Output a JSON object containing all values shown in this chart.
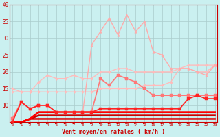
{
  "background_color": "#caf0f0",
  "grid_color": "#aacccc",
  "xlabel": "Vent moyen/en rafales ( km/h )",
  "xlim": [
    -0.3,
    23.3
  ],
  "ylim": [
    5,
    40
  ],
  "ytick_vals": [
    10,
    15,
    20,
    25,
    30,
    35,
    40
  ],
  "xtick_vals": [
    0,
    1,
    2,
    3,
    4,
    5,
    6,
    7,
    8,
    9,
    10,
    11,
    12,
    13,
    14,
    15,
    16,
    17,
    18,
    19,
    20,
    21,
    22,
    23
  ],
  "series": [
    {
      "y": [
        14,
        14,
        14,
        14,
        14,
        14,
        14,
        14,
        14,
        14,
        15,
        15,
        15,
        15,
        15,
        16,
        16,
        16,
        17,
        21,
        22,
        22,
        22,
        22
      ],
      "color": "#ffbbbb",
      "lw": 1.0,
      "marker": "D",
      "ms": 2.0
    },
    {
      "y": [
        15,
        14,
        14,
        17,
        19,
        18,
        18,
        19,
        18,
        18,
        20,
        20,
        21,
        21,
        20,
        20,
        20,
        20,
        20,
        21,
        21,
        20,
        20,
        22
      ],
      "color": "#ffbbbb",
      "lw": 1.0,
      "marker": "D",
      "ms": 2.0
    },
    {
      "y": [
        6,
        11,
        9,
        10,
        10,
        8,
        8,
        8,
        8,
        28,
        32,
        36,
        31,
        37,
        32,
        35,
        26,
        25,
        21,
        21,
        21,
        20,
        19,
        22
      ],
      "color": "#ffaaaa",
      "lw": 1.0,
      "marker": "^",
      "ms": 2.5
    },
    {
      "y": [
        6,
        11,
        9,
        10,
        10,
        8,
        8,
        8,
        8,
        8,
        18,
        16,
        19,
        18,
        17,
        15,
        13,
        13,
        13,
        13,
        13,
        13,
        13,
        13
      ],
      "color": "#ff7777",
      "lw": 1.2,
      "marker": "s",
      "ms": 2.5
    },
    {
      "y": [
        5,
        11,
        9,
        10,
        10,
        8,
        8,
        8,
        8,
        8,
        9,
        9,
        9,
        9,
        9,
        9,
        9,
        9,
        9,
        9,
        12,
        13,
        12,
        12
      ],
      "color": "#ff2222",
      "lw": 1.2,
      "marker": "s",
      "ms": 2.5
    },
    {
      "y": [
        5,
        5,
        6,
        6,
        6,
        6,
        6,
        6,
        6,
        6,
        6,
        6,
        6,
        6,
        6,
        6,
        6,
        6,
        6,
        6,
        6,
        6,
        6,
        6
      ],
      "color": "#dd0000",
      "lw": 1.8,
      "marker": null,
      "ms": 0
    },
    {
      "y": [
        5,
        5,
        6,
        7,
        7,
        7,
        7,
        7,
        7,
        7,
        7,
        7,
        7,
        7,
        7,
        7,
        7,
        7,
        7,
        7,
        7,
        7,
        7,
        7
      ],
      "color": "#cc0000",
      "lw": 1.8,
      "marker": null,
      "ms": 0
    },
    {
      "y": [
        5,
        5,
        6,
        8,
        8,
        8,
        8,
        8,
        8,
        8,
        8,
        8,
        8,
        8,
        8,
        8,
        8,
        8,
        8,
        8,
        8,
        8,
        8,
        8
      ],
      "color": "#ff0000",
      "lw": 2.0,
      "marker": null,
      "ms": 0
    }
  ],
  "arrow_color": "#cc0000",
  "tick_color": "#cc0000",
  "xlabel_color": "#cc0000",
  "ylabel_color": "#cc0000"
}
